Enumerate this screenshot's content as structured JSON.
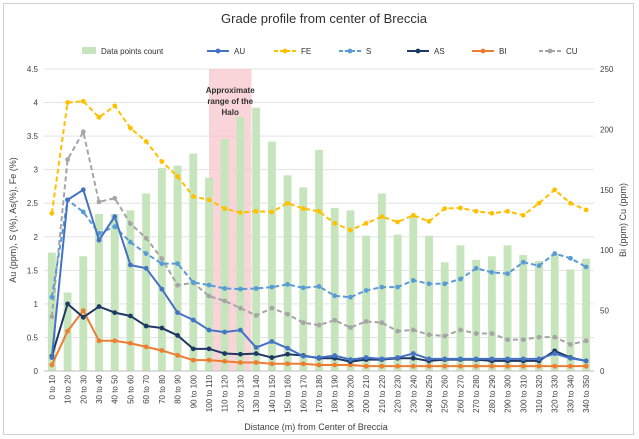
{
  "chart_data": {
    "type": "bar+line",
    "title": "Grade profile from center of Breccia",
    "xlabel": "Distance (m) from Center of Breccia",
    "ylabel_left": "Au (ppm), S (%), As(%), Fe (%)",
    "ylabel_right": "Bi (ppm) Cu (ppm)",
    "ylim_left": [
      0,
      4.5
    ],
    "ylim_right": [
      0,
      250
    ],
    "yticks_left": [
      "0",
      "0.5",
      "1",
      "1.5",
      "2",
      "2.5",
      "3",
      "3.5",
      "4",
      "4.5"
    ],
    "yticks_right": [
      "0",
      "50",
      "100",
      "150",
      "200",
      "250"
    ],
    "categories": [
      "0 to 10",
      "10 to 20",
      "20 to 30",
      "30 to 40",
      "40 to 50",
      "50 to 60",
      "60 to 70",
      "70 to 80",
      "80 to 90",
      "90 to 100",
      "100 to 110",
      "110 to 120",
      "120 to 130",
      "130 to 140",
      "140 to 150",
      "150 to 160",
      "160 to 170",
      "170 to 180",
      "180 to 190",
      "190 to 200",
      "200 to 210",
      "210 to 220",
      "220 to 230",
      "230 to 240",
      "240 to 250",
      "250 to 260",
      "260 to 270",
      "270 to 280",
      "280 to 290",
      "290 to 300",
      "300 to 310",
      "310 to 320",
      "320 to 330",
      "330 to 340",
      "340 to 350"
    ],
    "annotation": {
      "text_lines": [
        "Approximate",
        "range of the",
        "Halo"
      ],
      "x_range_categories": [
        "110 to 120",
        "120 to 130"
      ]
    },
    "series": [
      {
        "name": "Data points count",
        "type": "bar",
        "axis": "right",
        "color": "#c6e5bc",
        "values": [
          98,
          65,
          95,
          130,
          130,
          133,
          147,
          168,
          170,
          180,
          160,
          192,
          210,
          218,
          190,
          162,
          152,
          183,
          135,
          133,
          112,
          147,
          113,
          128,
          112,
          90,
          104,
          92,
          95,
          104,
          96,
          91,
          97,
          84,
          93
        ]
      },
      {
        "name": "AU",
        "type": "line",
        "axis": "left",
        "color": "#4472c4",
        "dash": "solid",
        "marker": "circle",
        "values": [
          0.2,
          2.55,
          2.7,
          1.95,
          2.3,
          1.58,
          1.53,
          1.22,
          0.87,
          0.76,
          0.61,
          0.58,
          0.61,
          0.35,
          0.44,
          0.34,
          0.22,
          0.2,
          0.23,
          0.17,
          0.2,
          0.18,
          0.2,
          0.26,
          0.18,
          0.18,
          0.18,
          0.18,
          0.18,
          0.18,
          0.18,
          0.18,
          0.26,
          0.19,
          0.15
        ]
      },
      {
        "name": "FE",
        "type": "line",
        "axis": "left",
        "color": "#ffc000",
        "dash": "dashed",
        "marker": "circle",
        "values": [
          2.35,
          4.0,
          4.02,
          3.78,
          3.95,
          3.62,
          3.42,
          3.12,
          2.9,
          2.6,
          2.55,
          2.42,
          2.36,
          2.38,
          2.37,
          2.5,
          2.42,
          2.38,
          2.2,
          2.1,
          2.2,
          2.3,
          2.22,
          2.32,
          2.23,
          2.42,
          2.43,
          2.38,
          2.35,
          2.38,
          2.32,
          2.5,
          2.7,
          2.5,
          2.4
        ]
      },
      {
        "name": "S",
        "type": "line",
        "axis": "left",
        "color": "#5b9bd5",
        "dash": "dashed",
        "marker": "circle",
        "values": [
          1.1,
          2.55,
          2.37,
          2.05,
          2.15,
          1.92,
          1.75,
          1.6,
          1.6,
          1.32,
          1.28,
          1.23,
          1.22,
          1.23,
          1.25,
          1.29,
          1.24,
          1.26,
          1.12,
          1.1,
          1.2,
          1.25,
          1.25,
          1.35,
          1.3,
          1.3,
          1.37,
          1.53,
          1.47,
          1.45,
          1.62,
          1.57,
          1.75,
          1.68,
          1.55
        ]
      },
      {
        "name": "AS",
        "type": "line",
        "axis": "left",
        "color": "#1f3864",
        "dash": "solid",
        "marker": "circle",
        "values": [
          0.22,
          1.0,
          0.8,
          0.96,
          0.87,
          0.82,
          0.67,
          0.64,
          0.53,
          0.33,
          0.33,
          0.26,
          0.25,
          0.26,
          0.2,
          0.25,
          0.23,
          0.19,
          0.19,
          0.14,
          0.17,
          0.17,
          0.19,
          0.19,
          0.15,
          0.17,
          0.17,
          0.17,
          0.15,
          0.15,
          0.15,
          0.15,
          0.3,
          0.2,
          0.15
        ]
      },
      {
        "name": "BI",
        "type": "line",
        "axis": "right",
        "color": "#ed7d31",
        "dash": "solid",
        "marker": "circle",
        "values": [
          5,
          33,
          50,
          25,
          25,
          23,
          20,
          17,
          13,
          9,
          9,
          8,
          7,
          7,
          6,
          6,
          6,
          5,
          5,
          5,
          4,
          4,
          4,
          4,
          4,
          4,
          4,
          4,
          4,
          4,
          4,
          4,
          4,
          4,
          4
        ]
      },
      {
        "name": "CU",
        "type": "line",
        "axis": "right",
        "color": "#a5a5a5",
        "dash": "dashed",
        "marker": "circle",
        "values": [
          45,
          175,
          198,
          140,
          143,
          122,
          110,
          93,
          71,
          73,
          62,
          58,
          52,
          46,
          52,
          47,
          40,
          38,
          42,
          36,
          41,
          40,
          33,
          34,
          30,
          29,
          34,
          31,
          31,
          26,
          26,
          28,
          28,
          22,
          25
        ]
      }
    ]
  }
}
